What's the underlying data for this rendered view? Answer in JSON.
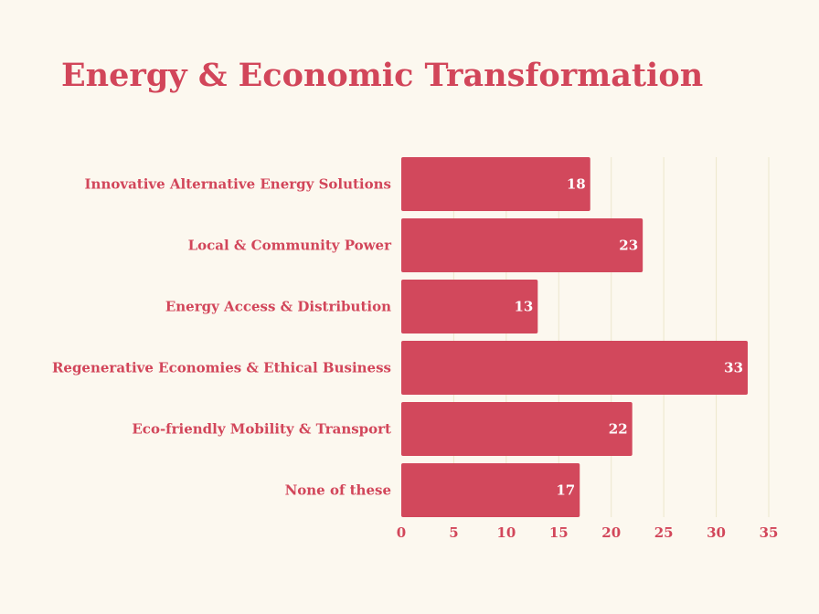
{
  "chart_data": {
    "type": "bar",
    "orientation": "horizontal",
    "title": "Energy & Economic Transformation",
    "xlabel": "",
    "ylabel": "",
    "categories": [
      "Innovative Alternative Energy Solutions",
      "Local & Community Power",
      "Energy Access & Distribution",
      "Regenerative Economies & Ethical Business",
      "Eco-friendly Mobility & Transport",
      "None of these"
    ],
    "values": [
      18,
      23,
      13,
      33,
      22,
      17
    ],
    "xlim": [
      0,
      35
    ],
    "xticks": [
      0,
      5,
      10,
      15,
      20,
      25,
      30,
      35
    ],
    "grid": true,
    "legend": "none",
    "colors": {
      "bar": "#d2485c",
      "text": "#d2465a",
      "value_text": "#ffffff",
      "grid": "#ede7cc",
      "background": "#fcf8ef"
    }
  }
}
